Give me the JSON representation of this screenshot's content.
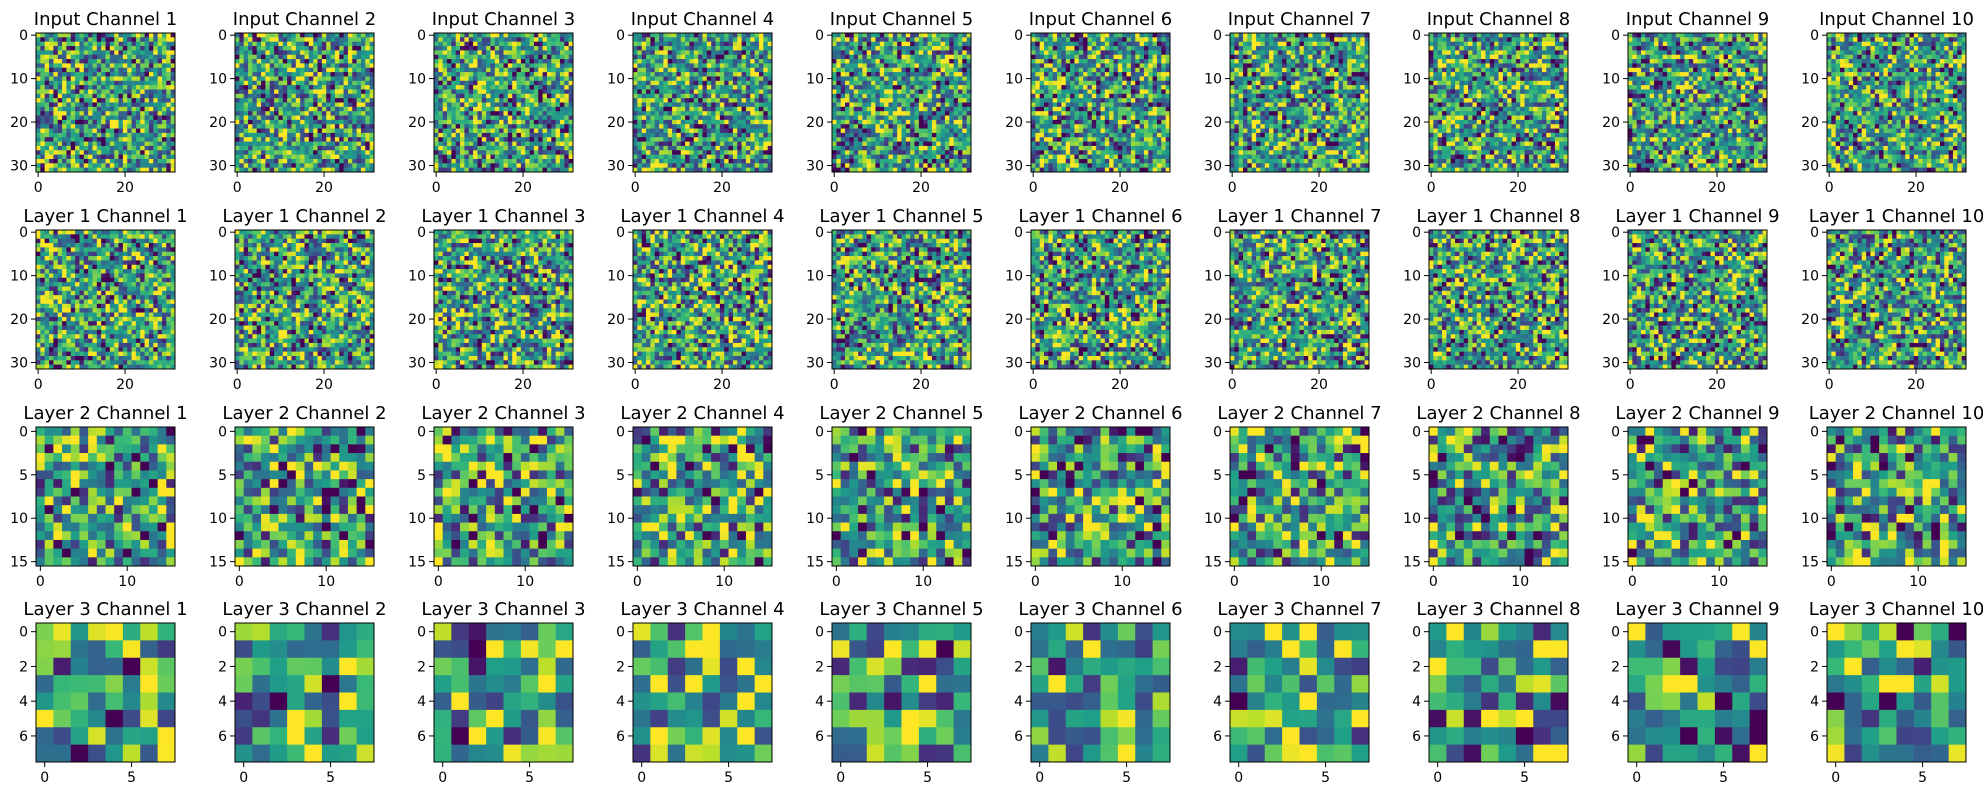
{
  "figure": {
    "background": "#ffffff",
    "colormap": "viridis",
    "colormap_stops": [
      "#440154",
      "#482878",
      "#3e4989",
      "#31688e",
      "#26828e",
      "#1f9e89",
      "#35b779",
      "#6ece58",
      "#b5de2b",
      "#fde725"
    ]
  },
  "chart_data": {
    "type": "heatmap",
    "grid": {
      "rows": 4,
      "cols": 10
    },
    "rows": [
      {
        "layer": "Input",
        "size": 32,
        "titles": [
          "Input Channel 1",
          "Input Channel 2",
          "Input Channel 3",
          "Input Channel 4",
          "Input Channel 5",
          "Input Channel 6",
          "Input Channel 7",
          "Input Channel 8",
          "Input Channel 9",
          "Input Channel 10"
        ],
        "x_ticks": [
          "0",
          "20"
        ],
        "y_ticks": [
          "0",
          "10",
          "20",
          "30"
        ],
        "x_tick_values": [
          0,
          20
        ],
        "y_tick_values": [
          0,
          10,
          20,
          30
        ]
      },
      {
        "layer": "Layer 1",
        "size": 32,
        "titles": [
          "Layer 1 Channel 1",
          "Layer 1 Channel 2",
          "Layer 1 Channel 3",
          "Layer 1 Channel 4",
          "Layer 1 Channel 5",
          "Layer 1 Channel 6",
          "Layer 1 Channel 7",
          "Layer 1 Channel 8",
          "Layer 1 Channel 9",
          "Layer 1 Channel 10"
        ],
        "x_ticks": [
          "0",
          "20"
        ],
        "y_ticks": [
          "0",
          "10",
          "20",
          "30"
        ],
        "x_tick_values": [
          0,
          20
        ],
        "y_tick_values": [
          0,
          10,
          20,
          30
        ]
      },
      {
        "layer": "Layer 2",
        "size": 16,
        "titles": [
          "Layer 2 Channel 1",
          "Layer 2 Channel 2",
          "Layer 2 Channel 3",
          "Layer 2 Channel 4",
          "Layer 2 Channel 5",
          "Layer 2 Channel 6",
          "Layer 2 Channel 7",
          "Layer 2 Channel 8",
          "Layer 2 Channel 9",
          "Layer 2 Channel 10"
        ],
        "x_ticks": [
          "0",
          "10"
        ],
        "y_ticks": [
          "0",
          "5",
          "10",
          "15"
        ],
        "x_tick_values": [
          0,
          10
        ],
        "y_tick_values": [
          0,
          5,
          10,
          15
        ]
      },
      {
        "layer": "Layer 3",
        "size": 8,
        "titles": [
          "Layer 3 Channel 1",
          "Layer 3 Channel 2",
          "Layer 3 Channel 3",
          "Layer 3 Channel 4",
          "Layer 3 Channel 5",
          "Layer 3 Channel 6",
          "Layer 3 Channel 7",
          "Layer 3 Channel 8",
          "Layer 3 Channel 9",
          "Layer 3 Channel 10"
        ],
        "x_ticks": [
          "0",
          "5"
        ],
        "y_ticks": [
          "0",
          "2",
          "4",
          "6"
        ],
        "x_tick_values": [
          0,
          5
        ],
        "y_tick_values": [
          0,
          2,
          4,
          6
        ]
      }
    ]
  }
}
